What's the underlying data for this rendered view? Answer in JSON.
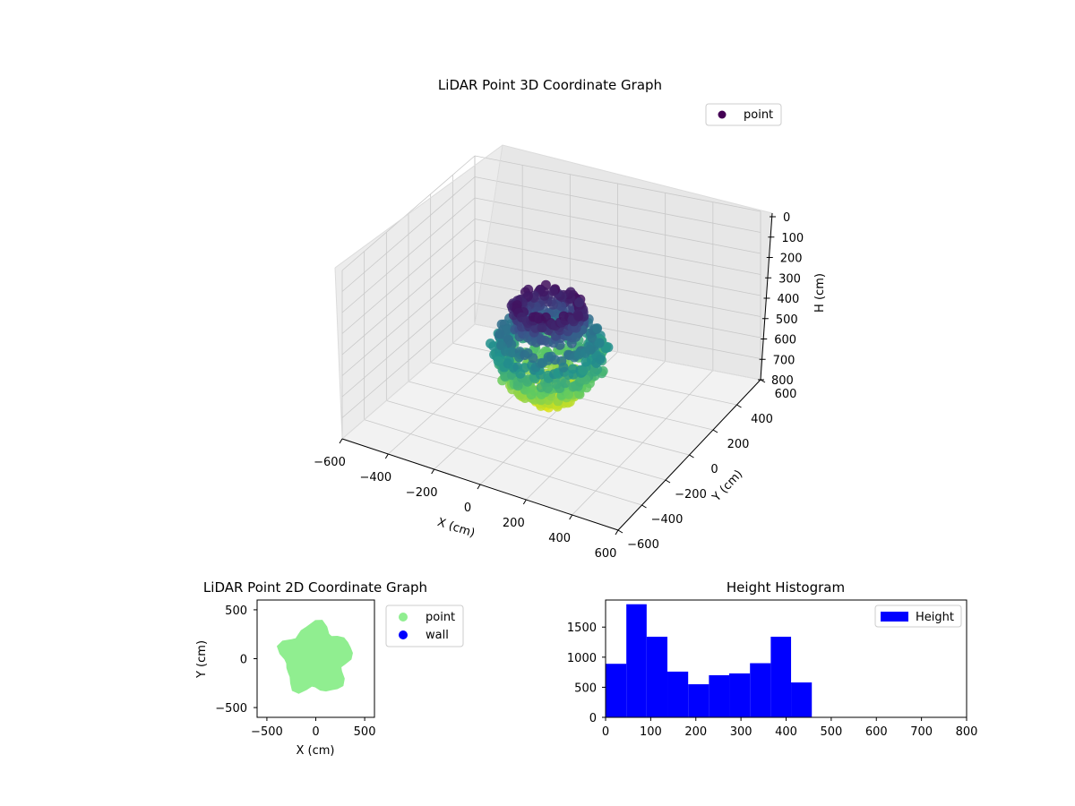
{
  "colors": {
    "viridis_low": "#440154",
    "viridis_mid": "#21908d",
    "viridis_high": "#dde318",
    "point_2d": "#90ee90",
    "wall_2d": "#0000ff",
    "hist_bar": "#0000ff",
    "pane": "#f2f2f2",
    "grid": "#c8c8c8"
  },
  "chart_data": [
    {
      "type": "scatter",
      "projection": "3d",
      "title": "LiDAR Point 3D Coordinate Graph",
      "xlabel": "X (cm)",
      "ylabel": "Y (cm)",
      "zlabel": "H (cm)",
      "xlim": [
        -600,
        600
      ],
      "ylim": [
        -600,
        600
      ],
      "zlim": [
        800,
        0
      ],
      "z_inverted": true,
      "xticks": [
        "−600",
        "−400",
        "−200",
        "0",
        "200",
        "400",
        "600"
      ],
      "yticks": [
        "−600",
        "−400",
        "−200",
        "0",
        "200",
        "400",
        "600"
      ],
      "zticks": [
        "0",
        "100",
        "200",
        "300",
        "400",
        "500",
        "600",
        "700",
        "800"
      ],
      "colormap": "viridis (by height)",
      "legend": {
        "placement": "upper-right",
        "entries": [
          "point"
        ]
      },
      "grid": true,
      "series": [
        {
          "name": "point",
          "shape": "rings",
          "rings": [
            {
              "h": 40,
              "r": 230,
              "count": 80
            },
            {
              "h": 80,
              "r": 210,
              "count": 70
            },
            {
              "h": 120,
              "r": 220,
              "count": 70
            },
            {
              "h": 180,
              "r": 330,
              "count": 80
            },
            {
              "h": 230,
              "r": 360,
              "count": 90
            },
            {
              "h": 280,
              "r": 350,
              "count": 90
            },
            {
              "h": 330,
              "r": 300,
              "count": 80
            },
            {
              "h": 370,
              "r": 250,
              "count": 70
            },
            {
              "h": 410,
              "r": 180,
              "count": 60
            },
            {
              "h": 440,
              "r": 110,
              "count": 40
            }
          ]
        }
      ]
    },
    {
      "type": "scatter",
      "title": "LiDAR Point 2D Coordinate Graph",
      "xlabel": "X (cm)",
      "ylabel": "Y (cm)",
      "xlim": [
        -600,
        600
      ],
      "ylim": [
        -600,
        600
      ],
      "xticks": [
        "−500",
        "0",
        "500"
      ],
      "yticks": [
        "−500",
        "0",
        "500"
      ],
      "legend": {
        "placement": "outside-right",
        "entries": [
          "point",
          "wall"
        ]
      },
      "grid": false,
      "series": [
        {
          "name": "point",
          "shape": "filled blob",
          "radius": 360
        },
        {
          "name": "wall",
          "points": []
        }
      ]
    },
    {
      "type": "bar",
      "subtype": "histogram",
      "title": "Height Histogram",
      "xlim": [
        0,
        800
      ],
      "ylim": [
        0,
        1950
      ],
      "xticks": [
        "0",
        "100",
        "200",
        "300",
        "400",
        "500",
        "600",
        "700",
        "800"
      ],
      "yticks": [
        "0",
        "500",
        "1000",
        "1500"
      ],
      "bin_edges": [
        0,
        46,
        91,
        137,
        183,
        229,
        274,
        320,
        366,
        411,
        457
      ],
      "values": [
        890,
        1880,
        1340,
        760,
        550,
        700,
        730,
        900,
        1340,
        580
      ],
      "legend": {
        "placement": "top-right",
        "entries": [
          "Height"
        ]
      },
      "grid": false,
      "series": [
        {
          "name": "Height"
        }
      ]
    }
  ]
}
